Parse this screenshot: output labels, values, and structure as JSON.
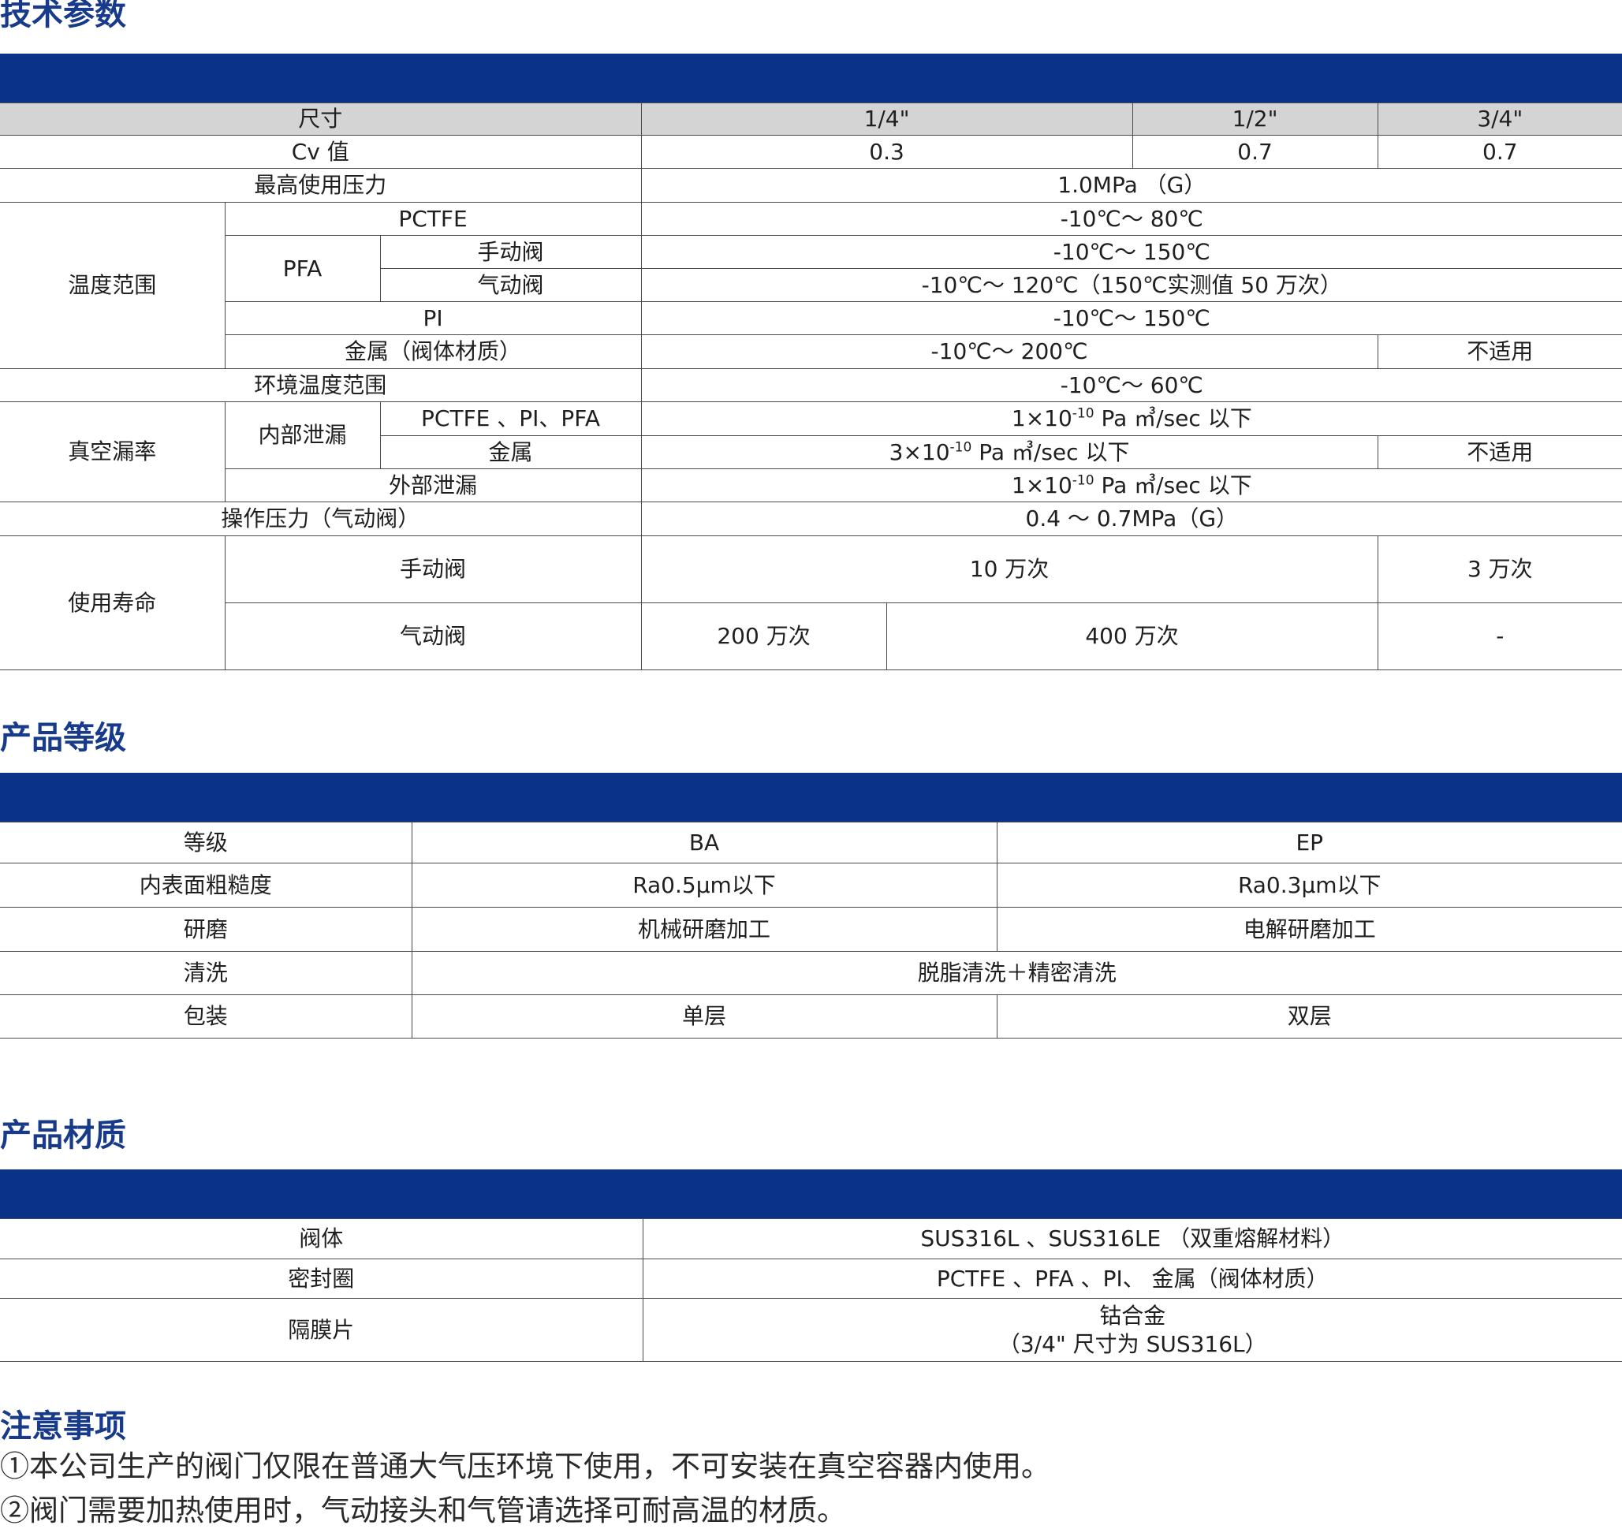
{
  "sections": {
    "tech": "技术参数",
    "grade": "产品等级",
    "material": "产品材质",
    "notes": "注意事项"
  },
  "tech": {
    "size_label": "尺寸",
    "size_14": "1/4\"",
    "size_12": "1/2\"",
    "size_34": "3/4\"",
    "cv_label": "Cv 值",
    "cv_14": "0.3",
    "cv_12": "0.7",
    "cv_34": "0.7",
    "maxp_label": "最高使用压力",
    "maxp_val": "1.0MPa （G）",
    "temp_label": "温度范围",
    "pctfe_label": "PCTFE",
    "pctfe_val": "-10℃～ 80℃",
    "pfa_label": "PFA",
    "manual_label": "手动阀",
    "pfa_manual_val": "-10℃～ 150℃",
    "pneu_label": "气动阀",
    "pfa_pneu_val": "-10℃～ 120℃（150℃实测值 50 万次）",
    "pi_label": "PI",
    "pi_val": "-10℃～ 150℃",
    "metal_body_label": "金属（阀体材质）",
    "metal_val": "-10℃～ 200℃",
    "na": "不适用",
    "env_label": "环境温度范围",
    "env_val": "-10℃～ 60℃",
    "vac_label": "真空漏率",
    "inner_leak_label": "内部泄漏",
    "pctfe_pi_pfa_label": "PCTFE 、PI、PFA",
    "leak_a_pre": "1×10",
    "leak_a_exp": "-10",
    "leak_a_post": "Pa ㎥/sec 以下",
    "metal_label": "金属",
    "leak_m_pre": "3×10",
    "leak_m_exp": "-10",
    "leak_m_post": "Pa ㎥/sec 以下",
    "outer_leak_label": "外部泄漏",
    "op_label": "操作压力（气动阀）",
    "op_val": "0.4 ～ 0.7MPa（G）",
    "life_label": "使用寿命",
    "life_manual_main": "10 万次",
    "life_manual_34": "3 万次",
    "life_pneu_14": "200 万次",
    "life_pneu_mid": "400 万次",
    "life_pneu_34": "-"
  },
  "grade": {
    "h_label": "等级",
    "h_ba": "BA",
    "h_ep": "EP",
    "rough_label": "内表面粗糙度",
    "rough_ba": "Ra0.5μm以下",
    "rough_ep": "Ra0.3μm以下",
    "polish_label": "研磨",
    "polish_ba": "机械研磨加工",
    "polish_ep": "电解研磨加工",
    "clean_label": "清洗",
    "clean_val": "脱脂清洗＋精密清洗",
    "pack_label": "包装",
    "pack_ba": "单层",
    "pack_ep": "双层"
  },
  "material": {
    "body_label": "阀体",
    "body_val": "SUS316L 、SUS316LE （双重熔解材料）",
    "seal_label": "密封圈",
    "seal_val": "PCTFE 、PFA 、PI、 金属（阀体材质）",
    "dia_label": "隔膜片",
    "dia_val1": "钴合金",
    "dia_val2": "（3/4\" 尺寸为 SUS316L）"
  },
  "notes": {
    "n1": "①本公司生产的阀门仅限在普通大气压环境下使用，不可安装在真空容器内使用。",
    "n2": "②阀门需要加热使用时，气动接头和气管请选择可耐高温的材质。"
  }
}
